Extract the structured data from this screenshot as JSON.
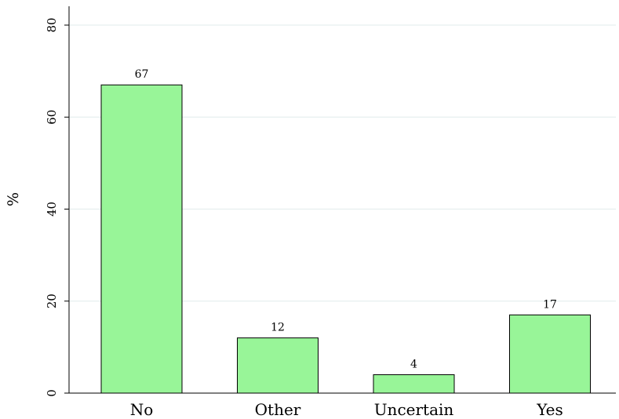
{
  "chart_data": {
    "type": "bar",
    "categories": [
      "No",
      "Other",
      "Uncertain",
      "Yes"
    ],
    "values": [
      67,
      12,
      4,
      17
    ],
    "data_labels": [
      "67",
      "12",
      "4",
      "17"
    ],
    "title": "",
    "xlabel": "",
    "ylabel": "%",
    "ylim": [
      0,
      80
    ],
    "yticks": [
      0,
      20,
      40,
      60,
      80
    ],
    "ytick_labels": [
      "0",
      "20",
      "40",
      "60",
      "80"
    ],
    "grid": true,
    "bar_color": "#98f598",
    "grid_color": "#e6efef"
  }
}
